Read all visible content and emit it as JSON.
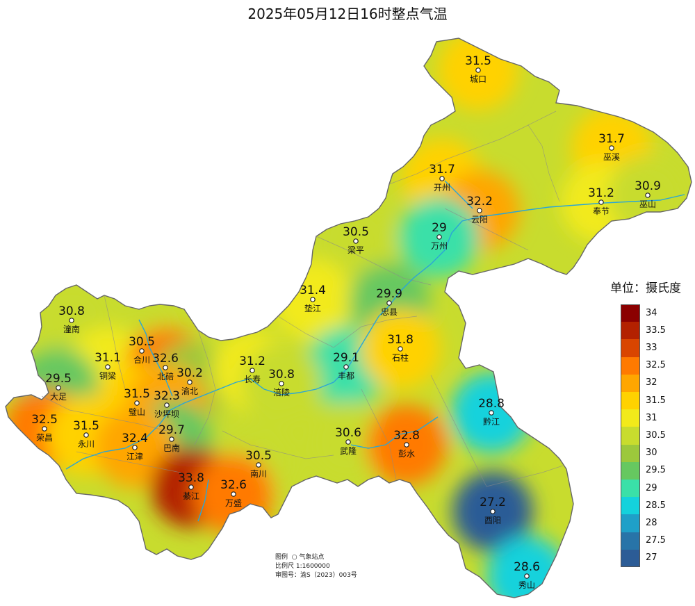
{
  "title": "2025年05月12日16时整点气温",
  "legend": {
    "title": "单位：摄氏度",
    "bins": [
      {
        "label": "34",
        "color": "#8b0000"
      },
      {
        "label": "33.5",
        "color": "#b32100"
      },
      {
        "label": "33",
        "color": "#d94500"
      },
      {
        "label": "32.5",
        "color": "#ff7a00"
      },
      {
        "label": "32",
        "color": "#ffa600"
      },
      {
        "label": "31.5",
        "color": "#ffd200"
      },
      {
        "label": "31",
        "color": "#f2ea1a"
      },
      {
        "label": "30.5",
        "color": "#c8dc2e"
      },
      {
        "label": "30",
        "color": "#9cc83c"
      },
      {
        "label": "29.5",
        "color": "#66c860"
      },
      {
        "label": "29",
        "color": "#3ae0a8"
      },
      {
        "label": "28.5",
        "color": "#14d2dc"
      },
      {
        "label": "28",
        "color": "#1fa0c8"
      },
      {
        "label": "27.5",
        "color": "#2874a8"
      },
      {
        "label": "27",
        "color": "#2c5c96"
      }
    ]
  },
  "stations": [
    {
      "name": "城口",
      "value": "31.5"
    },
    {
      "name": "巫溪",
      "value": "31.7"
    },
    {
      "name": "开州",
      "value": "31.7"
    },
    {
      "name": "云阳",
      "value": "32.2"
    },
    {
      "name": "奉节",
      "value": "31.2"
    },
    {
      "name": "巫山",
      "value": "30.9"
    },
    {
      "name": "万州",
      "value": "29"
    },
    {
      "name": "梁平",
      "value": "30.5"
    },
    {
      "name": "垫江",
      "value": "31.4"
    },
    {
      "name": "忠县",
      "value": "29.9"
    },
    {
      "name": "潼南",
      "value": "30.8"
    },
    {
      "name": "合川",
      "value": "30.5"
    },
    {
      "name": "铜梁",
      "value": "31.1"
    },
    {
      "name": "北碚",
      "value": "32.6"
    },
    {
      "name": "渝北",
      "value": "30.2"
    },
    {
      "name": "长寿",
      "value": "31.2"
    },
    {
      "name": "丰都",
      "value": "29.1"
    },
    {
      "name": "石柱",
      "value": "31.8"
    },
    {
      "name": "大足",
      "value": "29.5"
    },
    {
      "name": "璧山",
      "value": "31.5"
    },
    {
      "name": "沙坪坝",
      "value": "32.3"
    },
    {
      "name": "涪陵",
      "value": "30.8"
    },
    {
      "name": "荣昌",
      "value": "32.5"
    },
    {
      "name": "永川",
      "value": "31.5"
    },
    {
      "name": "巴南",
      "value": "29.7"
    },
    {
      "name": "江津",
      "value": "32.4"
    },
    {
      "name": "武隆",
      "value": "30.6"
    },
    {
      "name": "彭水",
      "value": "32.8"
    },
    {
      "name": "黔江",
      "value": "28.8"
    },
    {
      "name": "南川",
      "value": "30.5"
    },
    {
      "name": "綦江",
      "value": "33.8"
    },
    {
      "name": "万盛",
      "value": "32.6"
    },
    {
      "name": "酉阳",
      "value": "27.2"
    },
    {
      "name": "秀山",
      "value": "28.6"
    }
  ],
  "info": {
    "legend_label": "图例",
    "legend_item": "气象站点",
    "scale": "比例尺  1:1600000",
    "map_no": "审图号：渝S（2023）003号"
  }
}
